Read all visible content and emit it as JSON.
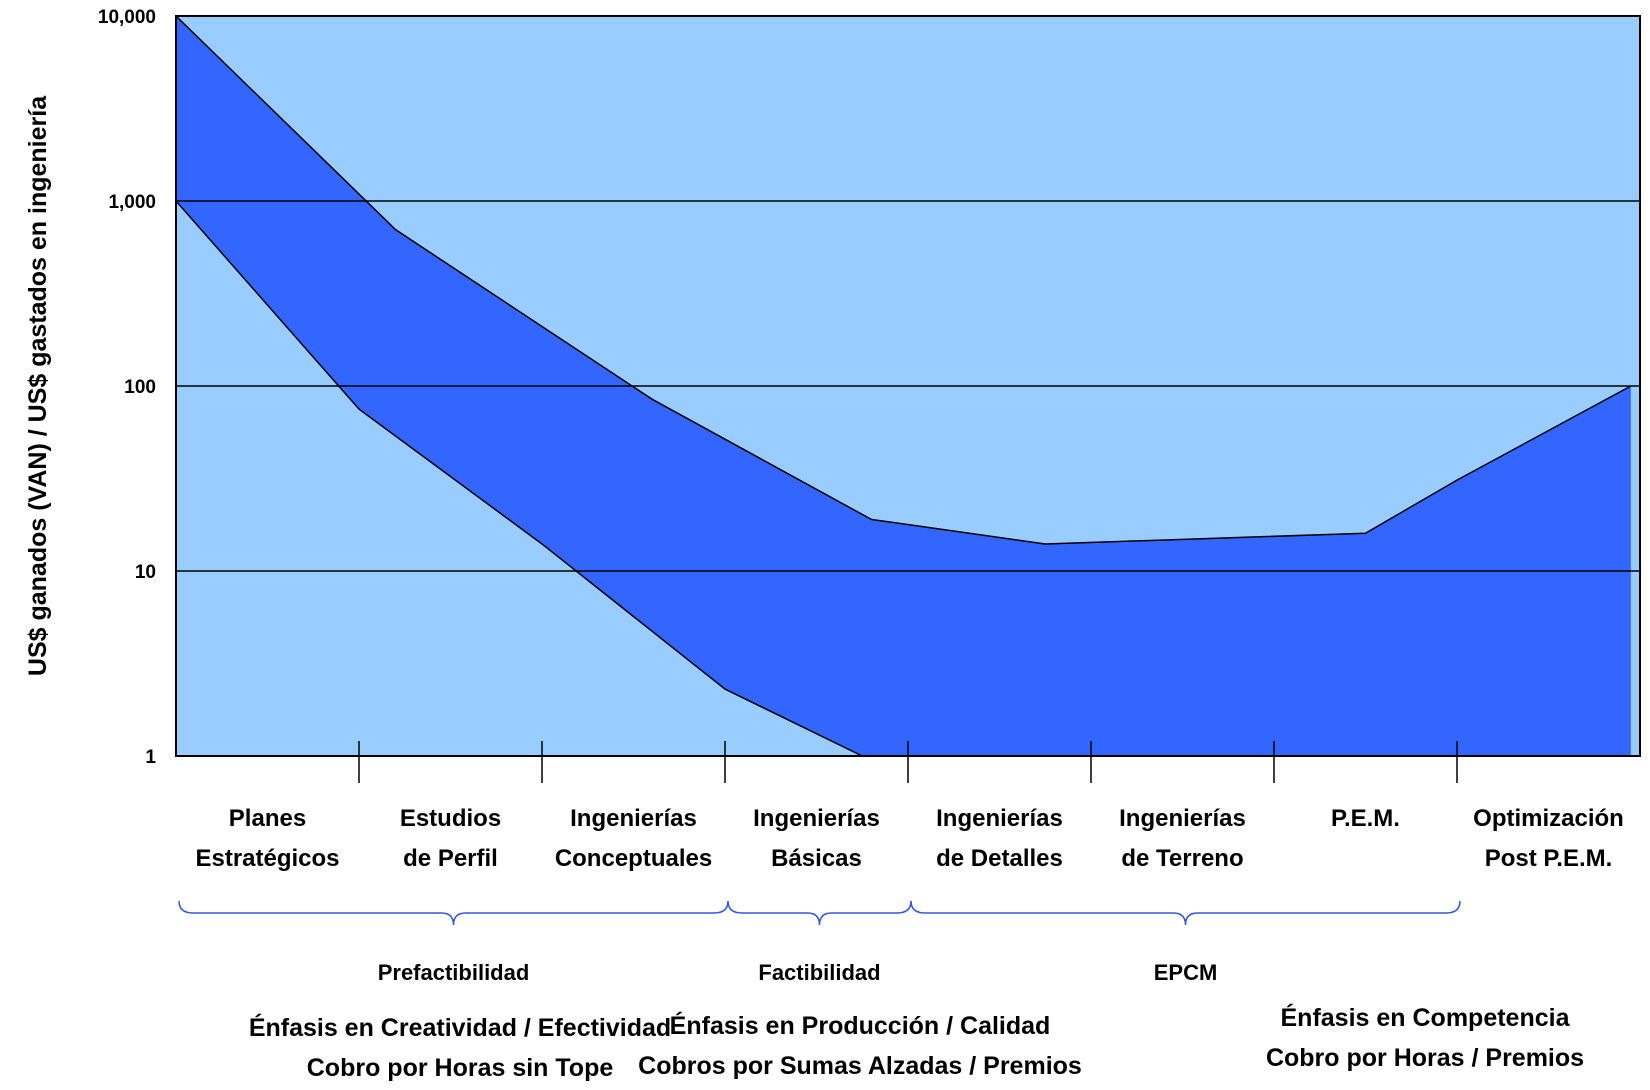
{
  "chart_data": {
    "type": "area",
    "ylabel": "US$ ganados (VAN) / US$ gastados en ingeniería",
    "yscale": "log",
    "ylim": [
      1,
      10000
    ],
    "yticks": [
      "10,000",
      "1,000",
      "100",
      "10",
      "1"
    ],
    "grid": true,
    "categories": [
      [
        "Planes",
        "Estratégicos"
      ],
      [
        "Estudios",
        "de Perfil"
      ],
      [
        "Ingenierías",
        "Conceptuales"
      ],
      [
        "Ingenierías",
        "Básicas"
      ],
      [
        "Ingenierías",
        "de Detalles"
      ],
      [
        "Ingenierías",
        "de Terreno"
      ],
      [
        "P.E.M."
      ],
      [
        "Optimización",
        "Post P.E.M."
      ]
    ],
    "series": [
      {
        "x": [
          0,
          1.2,
          2.6,
          3.8,
          4.75,
          6.5,
          7.0,
          7.95
        ],
        "values": [
          10000,
          700,
          85,
          19,
          14,
          16,
          31,
          100
        ]
      },
      {
        "x": [
          0,
          1.0,
          2.0,
          3.0,
          3.75,
          5.0,
          7.95
        ],
        "values": [
          1000,
          75,
          14,
          2.3,
          1.0,
          1.0,
          1.0
        ]
      }
    ],
    "colors": {
      "background": "#99ccff",
      "band": "#3366ff",
      "brace": "#3355dd"
    },
    "phases": [
      {
        "label": "Prefactibilidad",
        "from": 0,
        "to": 2
      },
      {
        "label": "Factibilidad",
        "from": 3,
        "to": 3
      },
      {
        "label": "EPCM",
        "from": 4,
        "to": 6
      }
    ],
    "emphasis": [
      {
        "lines": [
          "Énfasis en Creatividad / Efectividad",
          "Cobro por Horas sin Tope"
        ]
      },
      {
        "lines": [
          "Énfasis en Producción / Calidad",
          "Cobros por Sumas Alzadas / Premios"
        ]
      },
      {
        "lines": [
          "Énfasis en Competencia",
          "Cobro por Horas / Premios"
        ]
      }
    ]
  }
}
